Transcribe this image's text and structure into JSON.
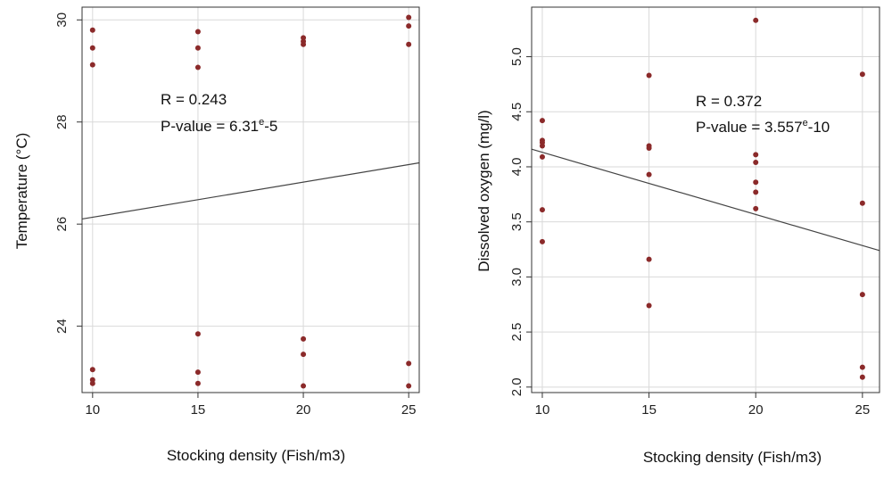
{
  "chart_data": [
    {
      "type": "scatter",
      "title": "",
      "xlabel": "Stocking density (Fish/m3)",
      "ylabel": "Temperature (°C)",
      "xticks": [
        10,
        15,
        20,
        25
      ],
      "yticks": [
        24,
        26,
        28,
        30
      ],
      "xlim": [
        9.5,
        25.5
      ],
      "ylim": [
        22.7,
        30.25
      ],
      "grid": true,
      "annotation": {
        "r_text": "R = 0.243",
        "p_prefix": "P-value = 6.31",
        "p_sup": "e",
        "p_suffix": "-5"
      },
      "points": [
        {
          "x": 10,
          "y": 29.8
        },
        {
          "x": 10,
          "y": 29.45
        },
        {
          "x": 10,
          "y": 29.12
        },
        {
          "x": 10,
          "y": 23.15
        },
        {
          "x": 10,
          "y": 22.95
        },
        {
          "x": 10,
          "y": 22.88
        },
        {
          "x": 15,
          "y": 29.77
        },
        {
          "x": 15,
          "y": 29.45
        },
        {
          "x": 15,
          "y": 29.07
        },
        {
          "x": 15,
          "y": 23.85
        },
        {
          "x": 15,
          "y": 23.1
        },
        {
          "x": 15,
          "y": 22.88
        },
        {
          "x": 20,
          "y": 29.65
        },
        {
          "x": 20,
          "y": 29.58
        },
        {
          "x": 20,
          "y": 29.52
        },
        {
          "x": 20,
          "y": 23.75
        },
        {
          "x": 20,
          "y": 23.45
        },
        {
          "x": 20,
          "y": 22.83
        },
        {
          "x": 25,
          "y": 30.05
        },
        {
          "x": 25,
          "y": 29.88
        },
        {
          "x": 25,
          "y": 29.52
        },
        {
          "x": 25,
          "y": 23.27
        },
        {
          "x": 25,
          "y": 22.83
        }
      ],
      "fit_line": {
        "x": [
          9.5,
          25.5
        ],
        "y": [
          26.1,
          27.2
        ]
      },
      "colors": {
        "point": "#8b2a2a",
        "line": "#444444",
        "grid": "#d9d9d9",
        "frame": "#333333"
      }
    },
    {
      "type": "scatter",
      "title": "",
      "xlabel": "Stocking density (Fish/m3)",
      "ylabel": "Dissolved oxygen (mg/l)",
      "xticks": [
        10,
        15,
        20,
        25
      ],
      "yticks": [
        2.0,
        2.5,
        3.0,
        3.5,
        4.0,
        4.5,
        5.0
      ],
      "ytick_labels": [
        "2.0",
        "2.5",
        "3.0",
        "3.5",
        "4.0",
        "4.5",
        "5.0"
      ],
      "xlim": [
        9.5,
        25.8
      ],
      "ylim": [
        1.95,
        5.45
      ],
      "grid": true,
      "annotation": {
        "r_text": "R = 0.372",
        "p_prefix": "P-value = 3.557",
        "p_sup": "e",
        "p_suffix": "-10"
      },
      "points": [
        {
          "x": 10,
          "y": 4.42
        },
        {
          "x": 10,
          "y": 4.24
        },
        {
          "x": 10,
          "y": 4.22
        },
        {
          "x": 10,
          "y": 4.19
        },
        {
          "x": 10,
          "y": 4.09
        },
        {
          "x": 10,
          "y": 3.61
        },
        {
          "x": 10,
          "y": 3.32
        },
        {
          "x": 15,
          "y": 4.83
        },
        {
          "x": 15,
          "y": 4.19
        },
        {
          "x": 15,
          "y": 4.17
        },
        {
          "x": 15,
          "y": 3.93
        },
        {
          "x": 15,
          "y": 3.16
        },
        {
          "x": 15,
          "y": 2.74
        },
        {
          "x": 20,
          "y": 5.33
        },
        {
          "x": 20,
          "y": 4.11
        },
        {
          "x": 20,
          "y": 4.04
        },
        {
          "x": 20,
          "y": 3.86
        },
        {
          "x": 20,
          "y": 3.77
        },
        {
          "x": 20,
          "y": 3.62
        },
        {
          "x": 25,
          "y": 4.84
        },
        {
          "x": 25,
          "y": 3.67
        },
        {
          "x": 25,
          "y": 2.84
        },
        {
          "x": 25,
          "y": 2.18
        },
        {
          "x": 25,
          "y": 2.09
        }
      ],
      "fit_line": {
        "x": [
          9.5,
          25.8
        ],
        "y": [
          4.16,
          3.24
        ]
      },
      "colors": {
        "point": "#8b2a2a",
        "line": "#444444",
        "grid": "#d9d9d9",
        "frame": "#333333"
      }
    }
  ]
}
